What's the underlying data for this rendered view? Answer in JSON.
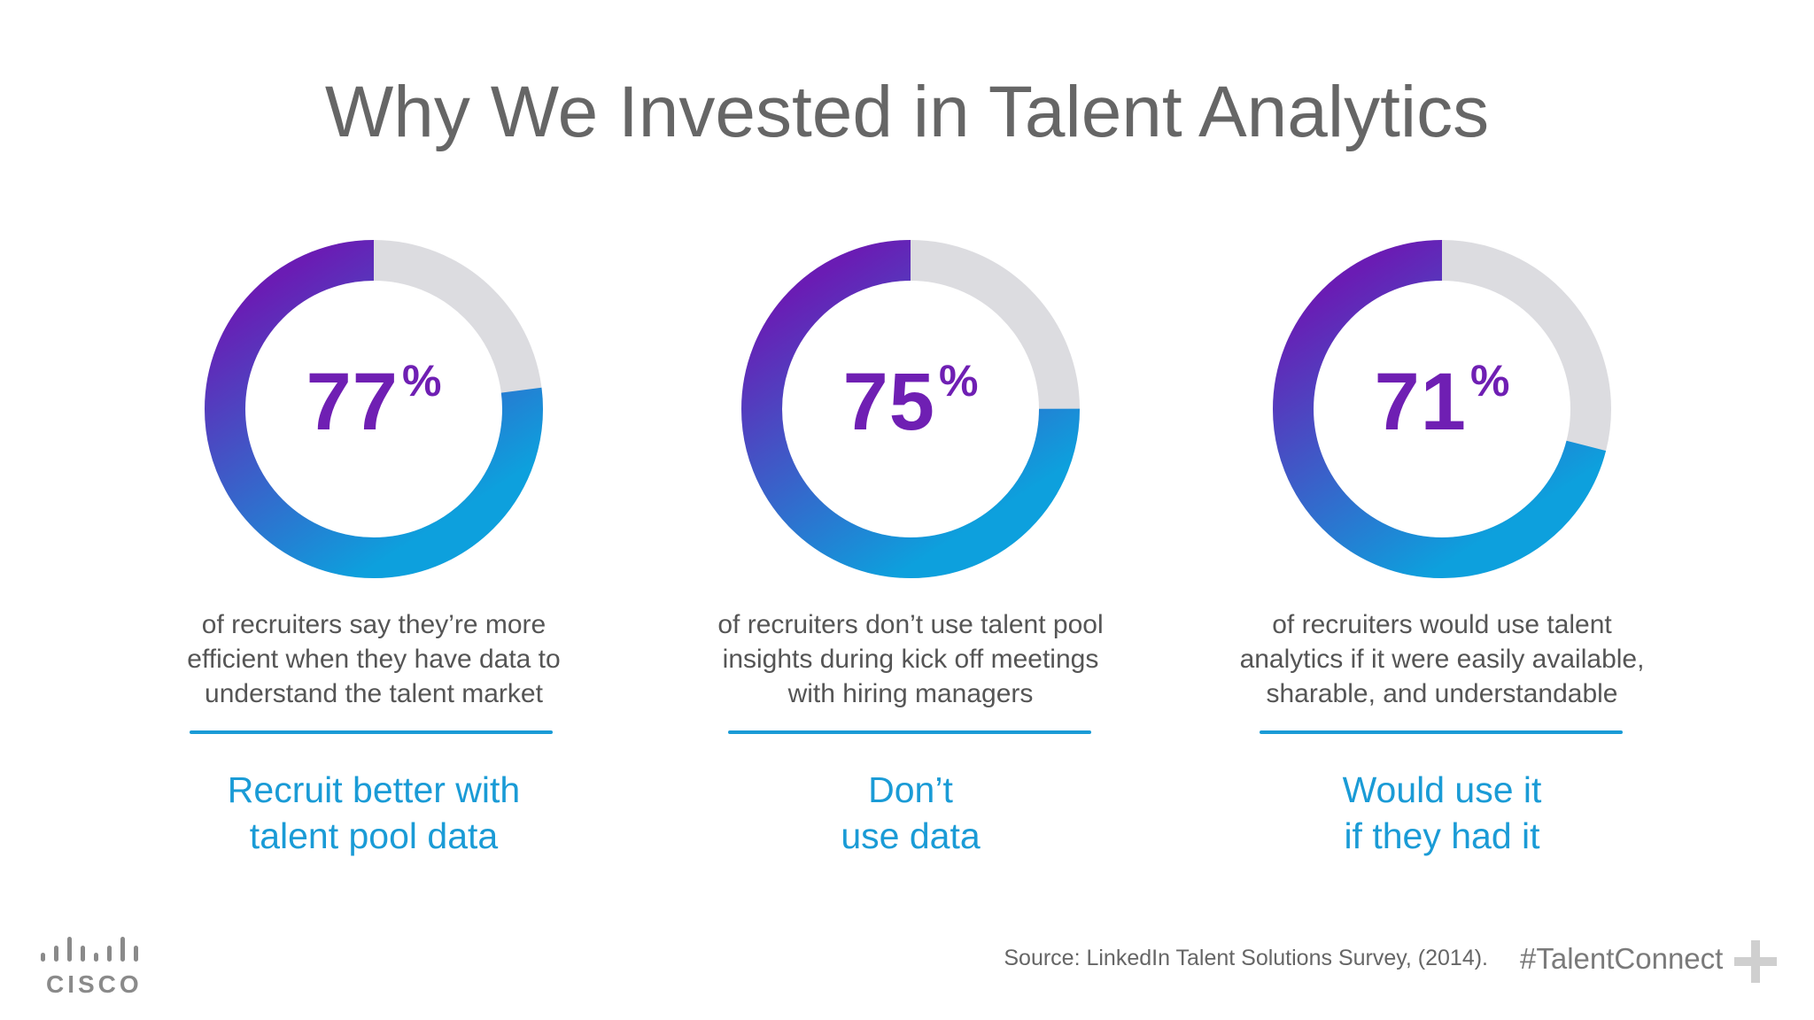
{
  "title": "Why We Invested in Talent Analytics",
  "chart_data": [
    {
      "type": "pie",
      "values": [
        77,
        23
      ],
      "percent_label": "77",
      "percent_symbol": "%",
      "description": [
        "of recruiters say they’re more",
        "efficient when they have data to",
        "understand the talent market"
      ],
      "tagline": [
        "Recruit better with",
        "talent pool data"
      ]
    },
    {
      "type": "pie",
      "values": [
        75,
        25
      ],
      "percent_label": "75",
      "percent_symbol": "%",
      "description": [
        "of recruiters don’t use talent pool",
        "insights during kick off meetings",
        "with hiring managers"
      ],
      "tagline": [
        "Don’t",
        "use data"
      ]
    },
    {
      "type": "pie",
      "values": [
        71,
        29
      ],
      "percent_label": "71",
      "percent_symbol": "%",
      "description": [
        "of recruiters would use talent",
        "analytics if it were easily available,",
        "sharable, and understandable"
      ],
      "tagline": [
        "Would use it",
        "if they had it"
      ]
    }
  ],
  "colors": {
    "gradient_start": "#0da0dd",
    "gradient_end": "#6a1cb4",
    "remainder": "#dcdce0",
    "percent_text": "#6f1fb3",
    "tagline": "#1a9bd6"
  },
  "footer": {
    "logo_text": "CISCO",
    "source": "Source: LinkedIn Talent Solutions Survey, (2014).",
    "hashtag": "#TalentConnect"
  }
}
